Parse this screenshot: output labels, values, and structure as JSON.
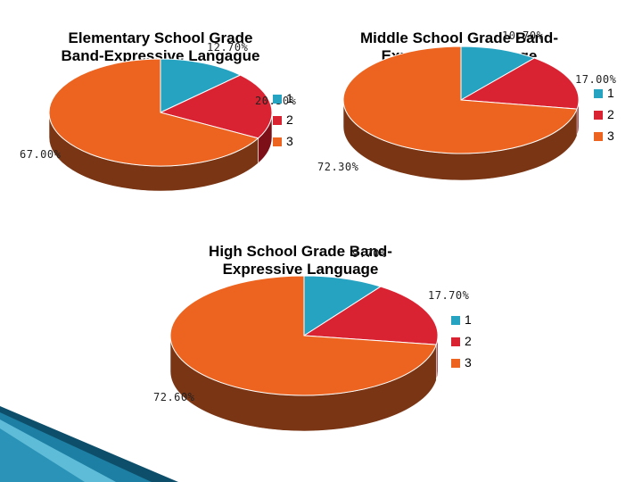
{
  "colors": {
    "series1": "#27A3C2",
    "series2": "#DA2332",
    "series3": "#EC641F",
    "side1": "#126379",
    "side2": "#7C0F18",
    "side3": "#7A3514",
    "rim": "#FFFFFF"
  },
  "chart_data": [
    {
      "type": "pie",
      "title": "Elementary School Grade Band-Expressive Langague",
      "categories": [
        "1",
        "2",
        "3"
      ],
      "values": [
        12.7,
        20.3,
        67.0
      ],
      "data_labels": [
        "12.70%",
        "20.30%",
        "67.00%"
      ],
      "legend": [
        "1",
        "2",
        "3"
      ],
      "legend_position": "right"
    },
    {
      "type": "pie",
      "title": "Middle School Grade Band-Expressive Language",
      "categories": [
        "1",
        "2",
        "3"
      ],
      "values": [
        10.7,
        17.0,
        72.3
      ],
      "data_labels": [
        "10.70%",
        "17.00%",
        "72.30%"
      ],
      "legend": [
        "1",
        "2",
        "3"
      ],
      "legend_position": "right"
    },
    {
      "type": "pie",
      "title": "High School Grade Band-Expressive Language",
      "categories": [
        "1",
        "2",
        "3"
      ],
      "values": [
        9.7,
        17.7,
        72.6
      ],
      "data_labels": [
        "9.70%",
        "17.70%",
        "72.60%"
      ],
      "legend": [
        "1",
        "2",
        "3"
      ],
      "legend_position": "right"
    }
  ]
}
